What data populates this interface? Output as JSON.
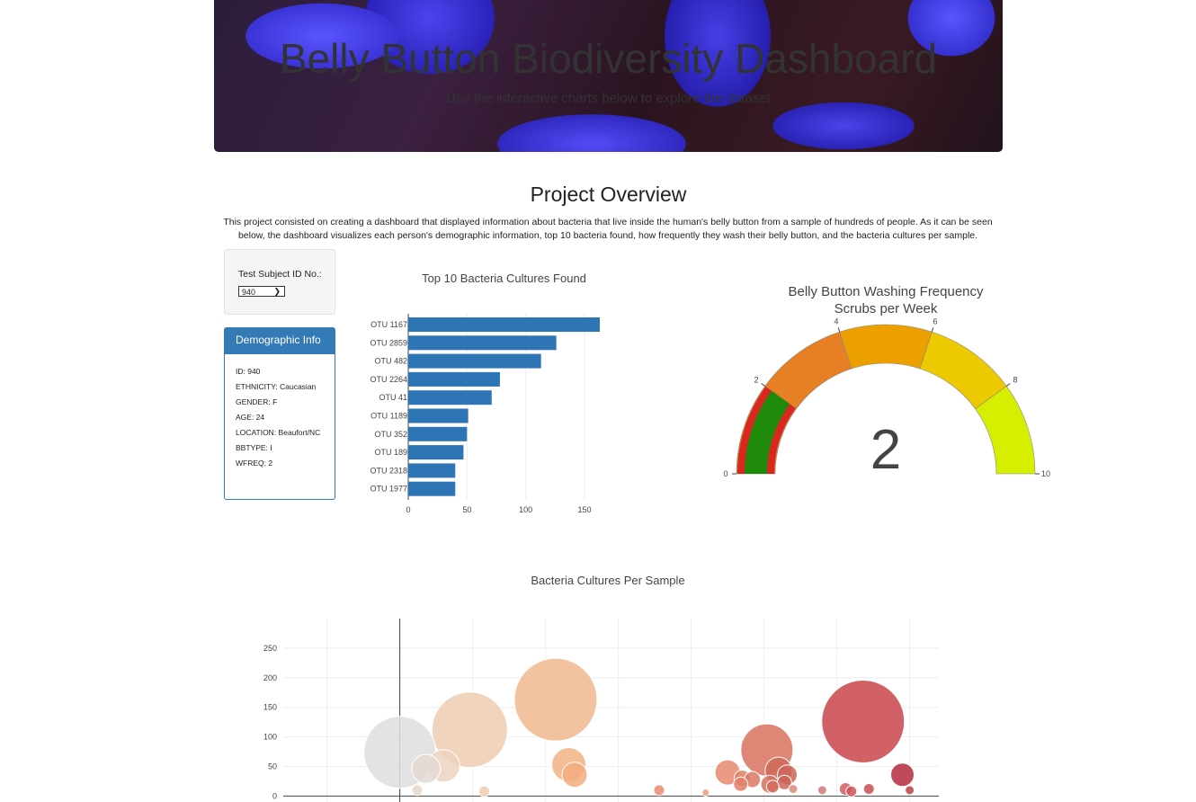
{
  "header": {
    "title": "Belly Button Biodiversity Dashboard",
    "subtitle": "Use the interactive charts below to explore the dataset"
  },
  "overview": {
    "title": "Project Overview",
    "text": "This project consisted on creating a dashboard that displayed information about bacteria that live inside the human's belly button from a sample of hundreds of people. As it can be seen below, the dashboard visualizes each person's demographic information, top 10 bacteria found, how frequently they wash their belly button, and the bacteria cultures per sample."
  },
  "selector": {
    "label": "Test Subject ID No.:",
    "selected": "940"
  },
  "demographics": {
    "title": "Demographic Info",
    "rows": [
      "ID: 940",
      "ETHNICITY: Caucasian",
      "GENDER: F",
      "AGE: 24",
      "LOCATION: Beaufort/NC",
      "BBTYPE: I",
      "WFREQ: 2"
    ]
  },
  "chart_data": [
    {
      "type": "bar",
      "orientation": "horizontal",
      "title": "Top 10 Bacteria Cultures Found",
      "categories": [
        "OTU 1167",
        "OTU 2859",
        "OTU 482",
        "OTU 2264",
        "OTU 41",
        "OTU 1189",
        "OTU 352",
        "OTU 189",
        "OTU 2318",
        "OTU 1977"
      ],
      "values": [
        163,
        126,
        113,
        78,
        71,
        51,
        50,
        47,
        40,
        40
      ],
      "xticks": [
        0,
        50,
        100,
        150
      ],
      "xlim": [
        0,
        163
      ],
      "color": "#2e75b6"
    },
    {
      "type": "gauge",
      "title": "Belly Button Washing Frequency",
      "subtitle": "Scrubs per Week",
      "value": 2,
      "range": [
        0,
        10
      ],
      "ticks": [
        0,
        2,
        4,
        6,
        8,
        10
      ],
      "steps": [
        {
          "range": [
            0,
            2
          ],
          "color": "#e28a2e"
        },
        {
          "range": [
            2,
            4
          ],
          "color": "#e77f24"
        },
        {
          "range": [
            4,
            6
          ],
          "color": "#eca000"
        },
        {
          "range": [
            6,
            8
          ],
          "color": "#ecc900"
        },
        {
          "range": [
            8,
            10
          ],
          "color": "#d6ee00"
        }
      ],
      "bar_color": "#1f8a0a",
      "outline_color": "#d9261f"
    },
    {
      "type": "scatter",
      "style": "bubble",
      "title": "Bacteria Cultures Per Sample",
      "yticks": [
        0,
        50,
        100,
        150,
        200,
        250
      ],
      "ylim": [
        -10,
        300
      ],
      "xlim": [
        -800,
        3700
      ],
      "x": [
        0,
        180,
        300,
        480,
        580,
        1070,
        1160,
        1200,
        1780,
        2250,
        2340,
        2350,
        2420,
        2520,
        2540,
        2560,
        2600,
        2640,
        2660,
        3180,
        3220,
        3450,
        3500,
        120,
        3100,
        3060,
        2700,
        2900,
        2100
      ],
      "y": [
        74,
        46,
        51,
        112,
        8,
        163,
        53,
        36,
        10,
        40,
        20,
        30,
        28,
        78,
        20,
        16,
        43,
        23,
        36,
        126,
        12,
        36,
        10,
        10,
        8,
        12,
        12,
        10,
        6
      ],
      "sizes": [
        40,
        16,
        18,
        42,
        6,
        46,
        19,
        14,
        6,
        14,
        8,
        9,
        9,
        29,
        10,
        7,
        15,
        8,
        11,
        46,
        6,
        13,
        5,
        6,
        6,
        7,
        5,
        5,
        4
      ],
      "colors": [
        "#dedede",
        "#e4d9d3",
        "#ecd2c0",
        "#eeccb2",
        "#efcbb0",
        "#f1b88e",
        "#f1b184",
        "#f2ad7e",
        "#e98a6e",
        "#e78970",
        "#e08068",
        "#df7e66",
        "#db7a64",
        "#d8725e",
        "#d57260",
        "#d26c5c",
        "#d06a5a",
        "#cd6658",
        "#cc6458",
        "#c9454b",
        "#c84d50",
        "#b52a40",
        "#c04048",
        "#e8d8c8",
        "#d0505a",
        "#d06060",
        "#dd8b7b",
        "#d77878",
        "#ea9a80"
      ]
    }
  ]
}
